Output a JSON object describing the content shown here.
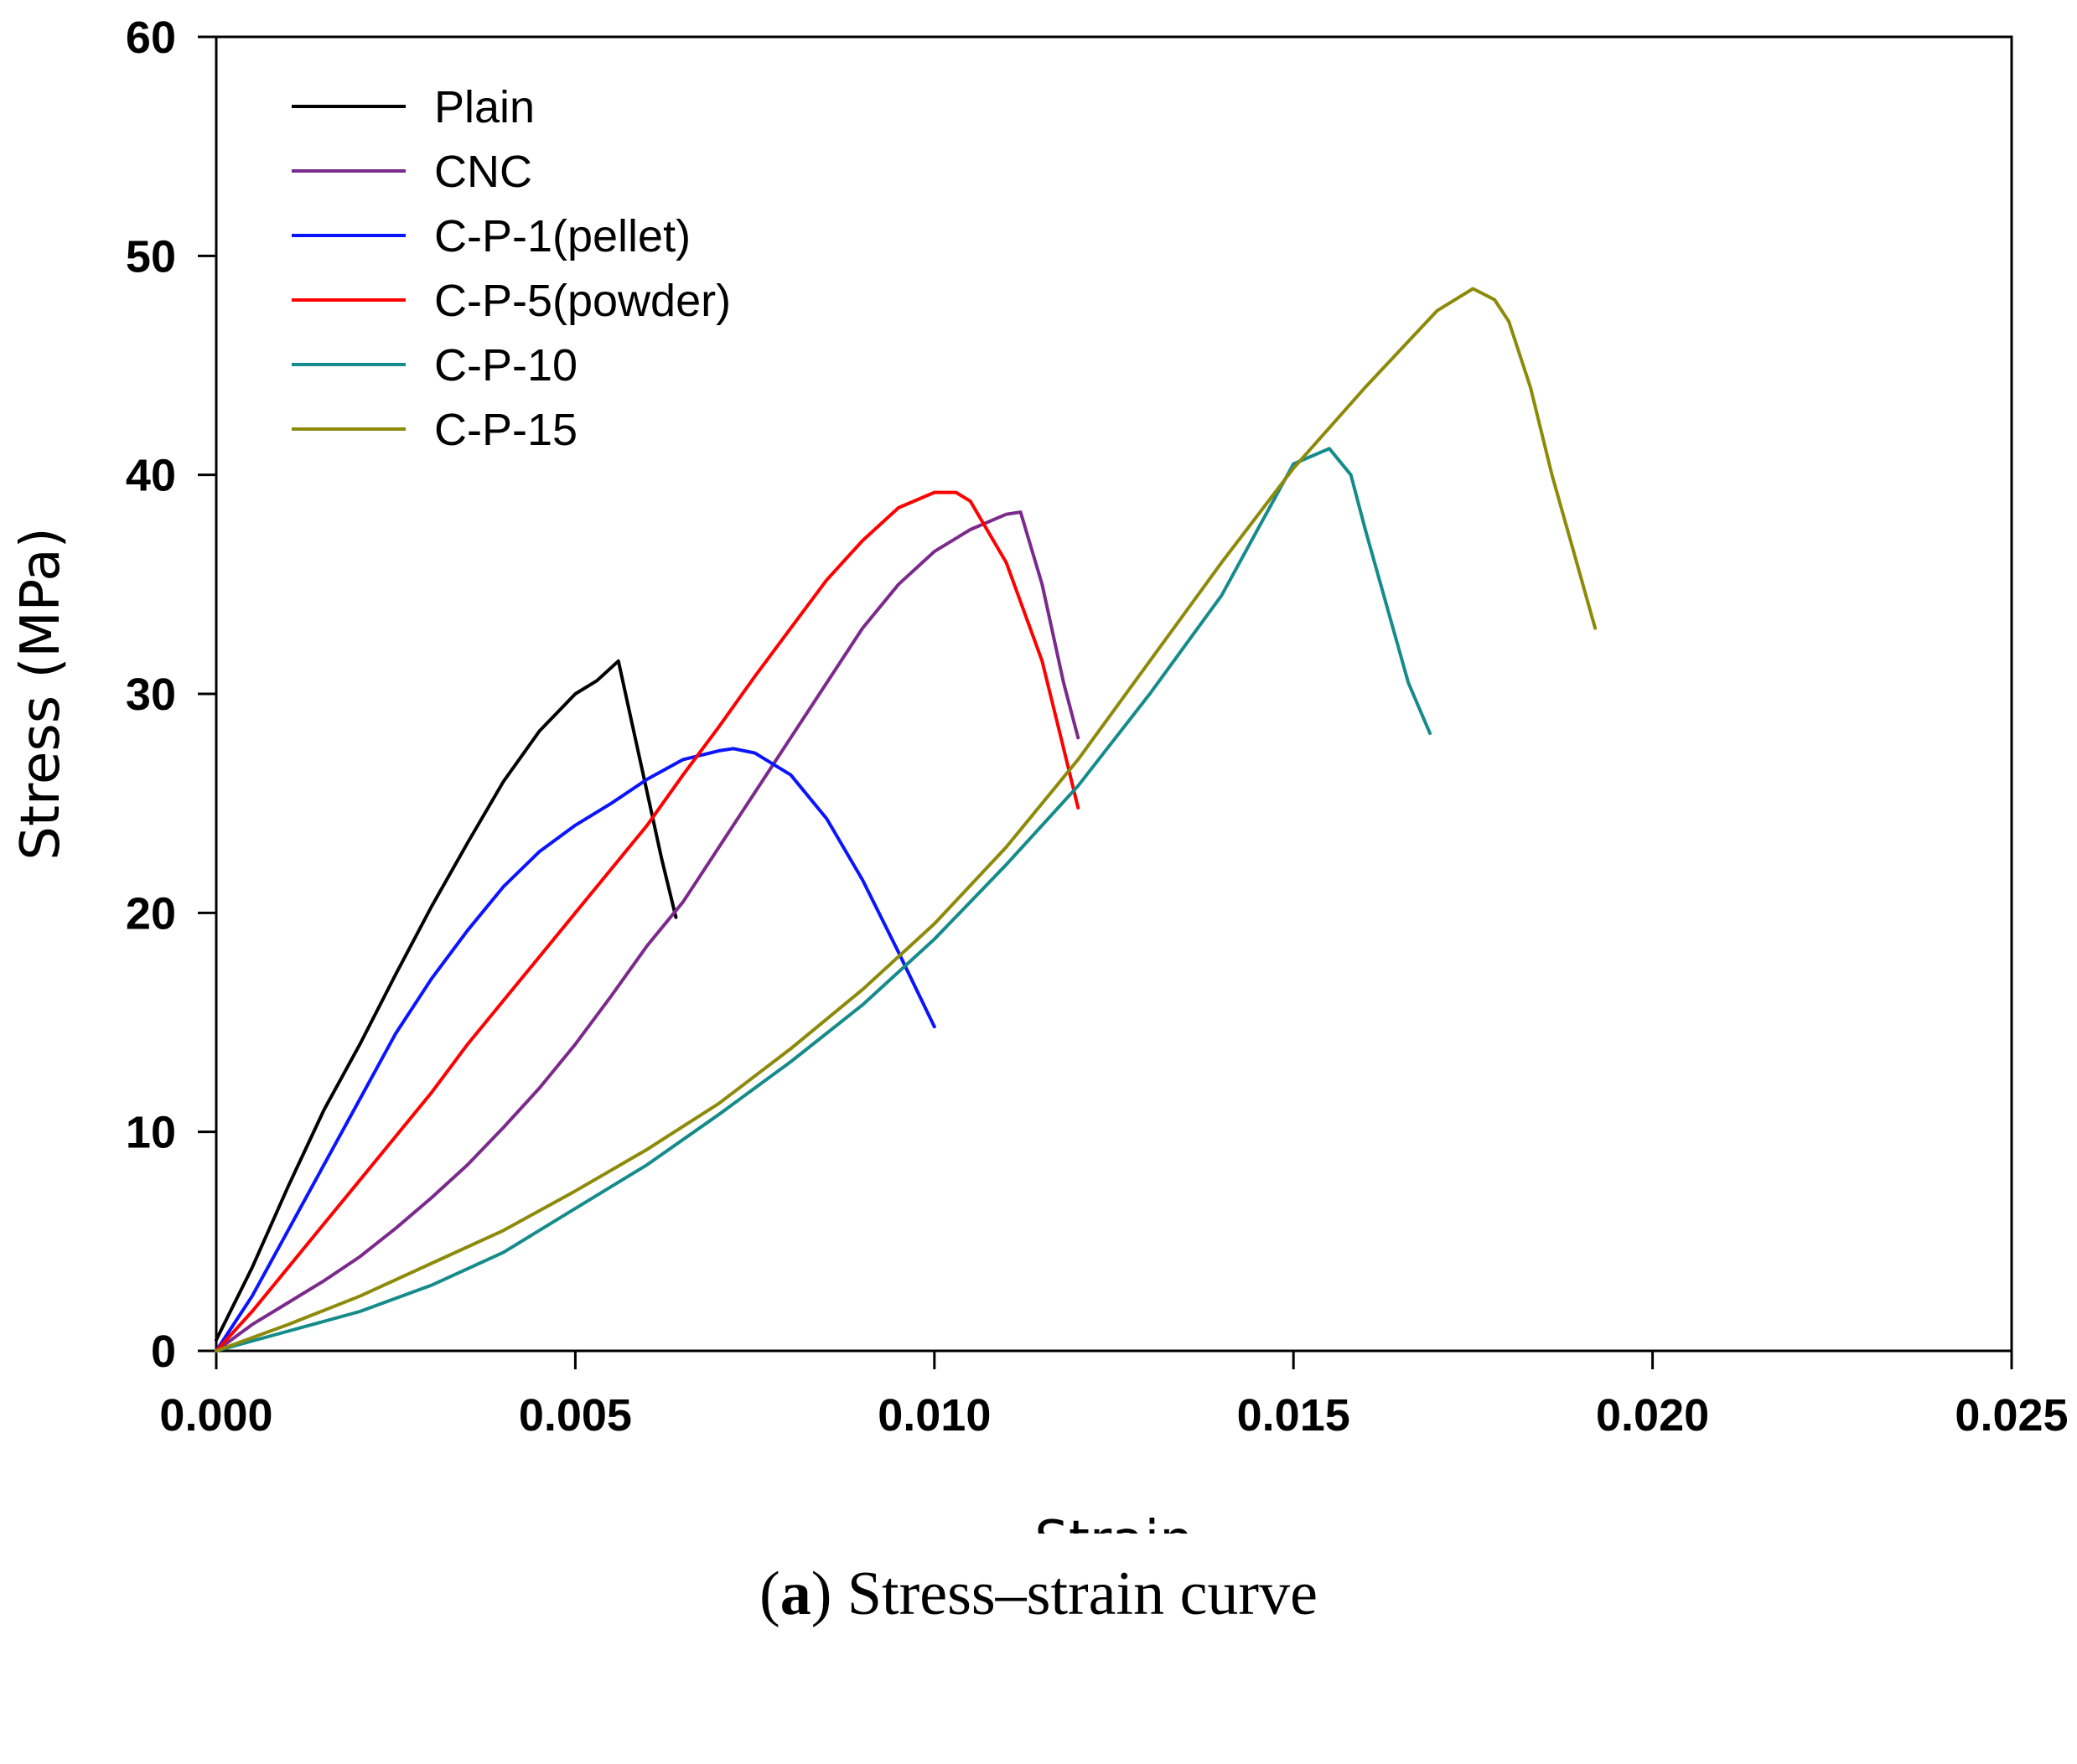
{
  "chart_data": {
    "type": "line",
    "xlabel": "Strain",
    "ylabel": "Stress (MPa)",
    "xlim": [
      0,
      0.025
    ],
    "ylim": [
      0,
      60
    ],
    "xticks": [
      "0.000",
      "0.005",
      "0.010",
      "0.015",
      "0.020",
      "0.025"
    ],
    "yticks": [
      "0",
      "10",
      "20",
      "30",
      "40",
      "50",
      "60"
    ],
    "grid": false,
    "legend_position": "top-left",
    "series": [
      {
        "name": "Plain",
        "color": "#000000",
        "x": [
          0,
          0.0005,
          0.001,
          0.0015,
          0.002,
          0.0025,
          0.003,
          0.0035,
          0.004,
          0.0045,
          0.005,
          0.0053,
          0.0056,
          0.0058,
          0.006,
          0.0062,
          0.0064
        ],
        "y": [
          0.5,
          3.8,
          7.5,
          11,
          14,
          17.2,
          20.3,
          23.2,
          26,
          28.3,
          30,
          30.6,
          31.5,
          28.5,
          25.5,
          22.5,
          19.8
        ]
      },
      {
        "name": "CNC",
        "color": "#7b2a8c",
        "x": [
          0,
          0.0005,
          0.001,
          0.0015,
          0.002,
          0.0025,
          0.003,
          0.0035,
          0.004,
          0.0045,
          0.005,
          0.0055,
          0.006,
          0.0065,
          0.007,
          0.0075,
          0.008,
          0.0085,
          0.009,
          0.0095,
          0.01,
          0.0105,
          0.011,
          0.0112,
          0.0115,
          0.0118,
          0.012
        ],
        "y": [
          0,
          1.2,
          2.2,
          3.2,
          4.3,
          5.6,
          7,
          8.5,
          10.2,
          12,
          14,
          16.2,
          18.5,
          20.5,
          23,
          25.5,
          28,
          30.5,
          33,
          35,
          36.5,
          37.5,
          38.2,
          38.3,
          35,
          30.5,
          28
        ]
      },
      {
        "name": "C-P-1(pellet)",
        "color": "#0a14ff",
        "x": [
          0,
          0.0005,
          0.001,
          0.0015,
          0.002,
          0.0025,
          0.003,
          0.0035,
          0.004,
          0.0045,
          0.005,
          0.0055,
          0.006,
          0.0065,
          0.007,
          0.0072,
          0.0075,
          0.008,
          0.0085,
          0.009,
          0.0095,
          0.01
        ],
        "y": [
          0,
          2.5,
          5.5,
          8.5,
          11.5,
          14.5,
          17,
          19.2,
          21.2,
          22.8,
          24,
          25,
          26.1,
          27,
          27.4,
          27.5,
          27.3,
          26.3,
          24.3,
          21.5,
          18.2,
          14.8
        ]
      },
      {
        "name": "C-P-5(powder)",
        "color": "#ff0000",
        "x": [
          0,
          0.0005,
          0.001,
          0.0015,
          0.002,
          0.0025,
          0.003,
          0.0035,
          0.004,
          0.0045,
          0.005,
          0.0055,
          0.006,
          0.0065,
          0.007,
          0.0075,
          0.008,
          0.0085,
          0.009,
          0.0095,
          0.01,
          0.0103,
          0.0105,
          0.011,
          0.0115,
          0.0118,
          0.012
        ],
        "y": [
          0,
          1.8,
          3.8,
          5.8,
          7.8,
          9.8,
          11.8,
          14,
          16,
          18,
          20,
          22,
          24,
          26.3,
          28.5,
          30.8,
          33,
          35.2,
          37,
          38.5,
          39.2,
          39.2,
          38.8,
          36,
          31.5,
          27.5,
          24.8
        ]
      },
      {
        "name": "C-P-10",
        "color": "#168b8b",
        "x": [
          0,
          0.001,
          0.002,
          0.003,
          0.004,
          0.005,
          0.006,
          0.007,
          0.008,
          0.009,
          0.01,
          0.011,
          0.012,
          0.013,
          0.014,
          0.015,
          0.0155,
          0.0158,
          0.016,
          0.0163,
          0.0166,
          0.0169
        ],
        "y": [
          0,
          0.9,
          1.8,
          3,
          4.5,
          6.5,
          8.5,
          10.8,
          13.2,
          15.8,
          18.8,
          22.2,
          25.8,
          30,
          34.5,
          40.5,
          41.2,
          40,
          37.5,
          34,
          30.5,
          28.2
        ]
      },
      {
        "name": "C-P-15",
        "color": "#8d8a0a",
        "x": [
          0,
          0.001,
          0.002,
          0.003,
          0.004,
          0.005,
          0.006,
          0.007,
          0.008,
          0.009,
          0.01,
          0.011,
          0.012,
          0.013,
          0.014,
          0.015,
          0.016,
          0.017,
          0.0175,
          0.0178,
          0.018,
          0.0183,
          0.0186,
          0.0189,
          0.0192
        ],
        "y": [
          0,
          1.2,
          2.5,
          4,
          5.5,
          7.3,
          9.2,
          11.3,
          13.8,
          16.5,
          19.5,
          23,
          27,
          31.5,
          36,
          40.3,
          44,
          47.5,
          48.5,
          48,
          47,
          44,
          40,
          36.5,
          33
        ]
      }
    ]
  },
  "caption": {
    "label": "a",
    "text": " Stress–strain curve"
  }
}
